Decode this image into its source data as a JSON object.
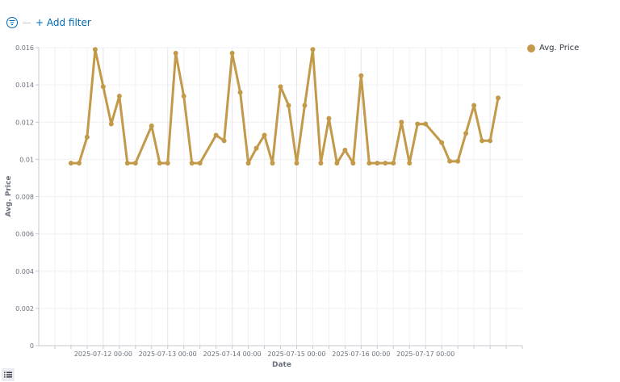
{
  "toolbar": {
    "filter_icon": "filter-icon",
    "add_filter_label": "+ Add filter"
  },
  "legend": {
    "label": "Avg. Price",
    "color": "#c29a4a"
  },
  "chart_data": {
    "type": "line",
    "xlabel": "Date",
    "ylabel": "Avg. Price",
    "ylim": [
      0,
      0.016
    ],
    "y_ticks": [
      "0",
      "0.002",
      "0.004",
      "0.006",
      "0.008",
      "0.01",
      "0.012",
      "0.014",
      "0.016"
    ],
    "x_ticks": [
      {
        "label": "2025-07-12 00:00",
        "hour": 24
      },
      {
        "label": "2025-07-13 00:00",
        "hour": 48
      },
      {
        "label": "2025-07-14 00:00",
        "hour": 72
      },
      {
        "label": "2025-07-15 00:00",
        "hour": 96
      },
      {
        "label": "2025-07-16 00:00",
        "hour": 120
      },
      {
        "label": "2025-07-17 00:00",
        "hour": 144
      }
    ],
    "grid": true,
    "legend_position": "top-right",
    "series": [
      {
        "name": "Avg. Price",
        "color": "#c29a4a",
        "points": [
          [
            12,
            0.0098
          ],
          [
            15,
            0.0098
          ],
          [
            18,
            0.0112
          ],
          [
            21,
            0.0159
          ],
          [
            24,
            0.0139
          ],
          [
            27,
            0.0119
          ],
          [
            30,
            0.0134
          ],
          [
            33,
            0.0098
          ],
          [
            36,
            0.0098
          ],
          [
            42,
            0.0118
          ],
          [
            45,
            0.0098
          ],
          [
            48,
            0.0098
          ],
          [
            51,
            0.0157
          ],
          [
            54,
            0.0134
          ],
          [
            57,
            0.0098
          ],
          [
            60,
            0.0098
          ],
          [
            66,
            0.0113
          ],
          [
            69,
            0.011
          ],
          [
            72,
            0.0157
          ],
          [
            75,
            0.0136
          ],
          [
            78,
            0.0098
          ],
          [
            81,
            0.0106
          ],
          [
            84,
            0.0113
          ],
          [
            87,
            0.0098
          ],
          [
            90,
            0.0139
          ],
          [
            93,
            0.0129
          ],
          [
            96,
            0.0098
          ],
          [
            99,
            0.0129
          ],
          [
            102,
            0.0159
          ],
          [
            105,
            0.0098
          ],
          [
            108,
            0.0122
          ],
          [
            111,
            0.0098
          ],
          [
            114,
            0.0105
          ],
          [
            117,
            0.0098
          ],
          [
            120,
            0.0145
          ],
          [
            123,
            0.0098
          ],
          [
            126,
            0.0098
          ],
          [
            129,
            0.0098
          ],
          [
            132,
            0.0098
          ],
          [
            135,
            0.012
          ],
          [
            138,
            0.0098
          ],
          [
            141,
            0.0119
          ],
          [
            144,
            0.0119
          ],
          [
            150,
            0.0109
          ],
          [
            153,
            0.0099
          ],
          [
            156,
            0.0099
          ],
          [
            159,
            0.0114
          ],
          [
            162,
            0.0129
          ],
          [
            165,
            0.011
          ],
          [
            168,
            0.011
          ],
          [
            171,
            0.0133
          ]
        ]
      }
    ]
  }
}
